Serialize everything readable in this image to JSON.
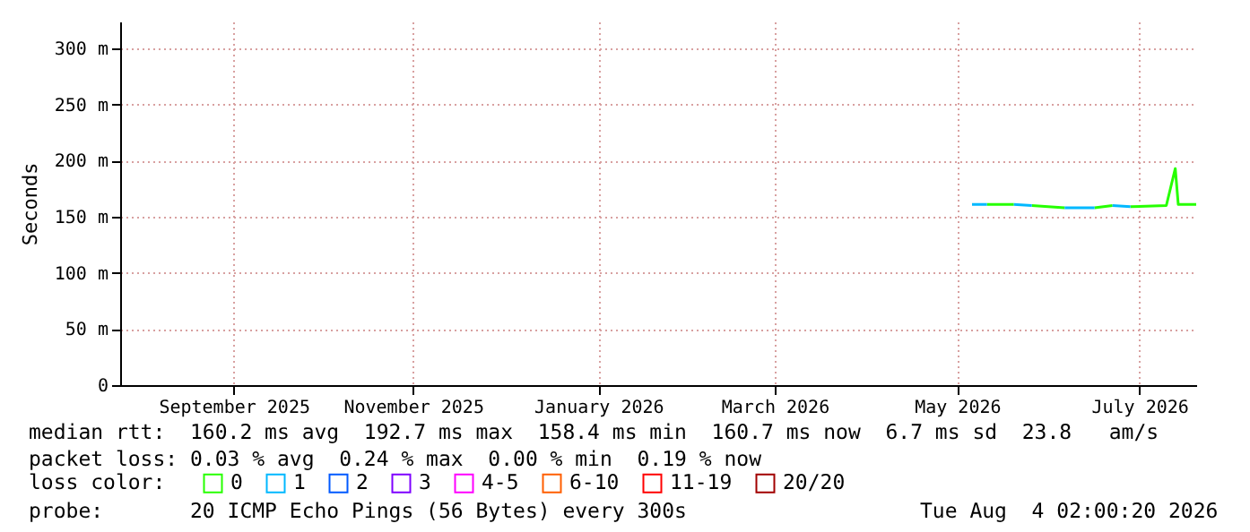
{
  "chart_data": {
    "type": "line",
    "ylabel": "Seconds",
    "legend_title": "loss color:",
    "legend": "bottom left",
    "grid": true,
    "series": [
      {
        "name": "0",
        "color": "#26ff00",
        "x": [
          "2026-05-26",
          "2026-06-04",
          "2026-06-07",
          "2026-06-10",
          "2026-06-21",
          "2026-06-26",
          "2026-07-01",
          "2026-07-07",
          "2026-07-10",
          "2026-07-13",
          "2026-07-25",
          "2026-07-28",
          "2026-07-29",
          "2026-08-04"
        ],
        "values": [
          161,
          161,
          null,
          160,
          158,
          null,
          158,
          160,
          null,
          159,
          160,
          193,
          161,
          161
        ]
      },
      {
        "name": "1",
        "color": "#00b8ff",
        "x": [
          "2026-05-21",
          "2026-05-26",
          "2026-05-30",
          "2026-06-04",
          "2026-06-10",
          "2026-06-15",
          "2026-06-21",
          "2026-07-01",
          "2026-07-04",
          "2026-07-07",
          "2026-07-13"
        ],
        "values": [
          161,
          161,
          null,
          161,
          160,
          null,
          158,
          158,
          null,
          160,
          159
        ]
      },
      {
        "name": "2",
        "color": "#0059ff"
      },
      {
        "name": "3",
        "color": "#7e00ff"
      },
      {
        "name": "4-5",
        "color": "#ff00ff"
      },
      {
        "name": "6-10",
        "color": "#ff5e00"
      },
      {
        "name": "11-19",
        "color": "#ff0000"
      },
      {
        "name": "20/20",
        "color": "#a10000"
      }
    ],
    "xlim": [
      "2025-08-09",
      "2026-08-04"
    ],
    "xticks": [
      {
        "value": "2025-09-16",
        "label": "September 2025"
      },
      {
        "value": "2025-11-15",
        "label": "November 2025"
      },
      {
        "value": "2026-01-16",
        "label": "January 2026"
      },
      {
        "value": "2026-03-16",
        "label": "March 2026"
      },
      {
        "value": "2026-05-16",
        "label": "May 2026"
      },
      {
        "value": "2026-07-16",
        "label": "July 2026"
      }
    ],
    "ylim": [
      0,
      324
    ],
    "yticks": [
      0,
      {
        "value": 50,
        "label": "50 m"
      },
      {
        "value": 100,
        "label": "100 m"
      },
      {
        "value": 150,
        "label": "150 m"
      },
      {
        "value": 200,
        "label": "200 m"
      },
      {
        "value": 250,
        "label": "250 m"
      },
      {
        "value": 300,
        "label": "300 m"
      }
    ],
    "annotations": [
      "median rtt:  160.2 ms avg  192.7 ms max  158.4 ms min  160.7 ms now  6.7 ms sd  23.8   am/s",
      "packet loss: 0.03 % avg  0.24 % max  0.00 % min  0.19 % now",
      "probe:       20 ICMP Echo Pings (56 Bytes) every 300s",
      "Tue Aug  4 02:00:20 2026"
    ]
  }
}
